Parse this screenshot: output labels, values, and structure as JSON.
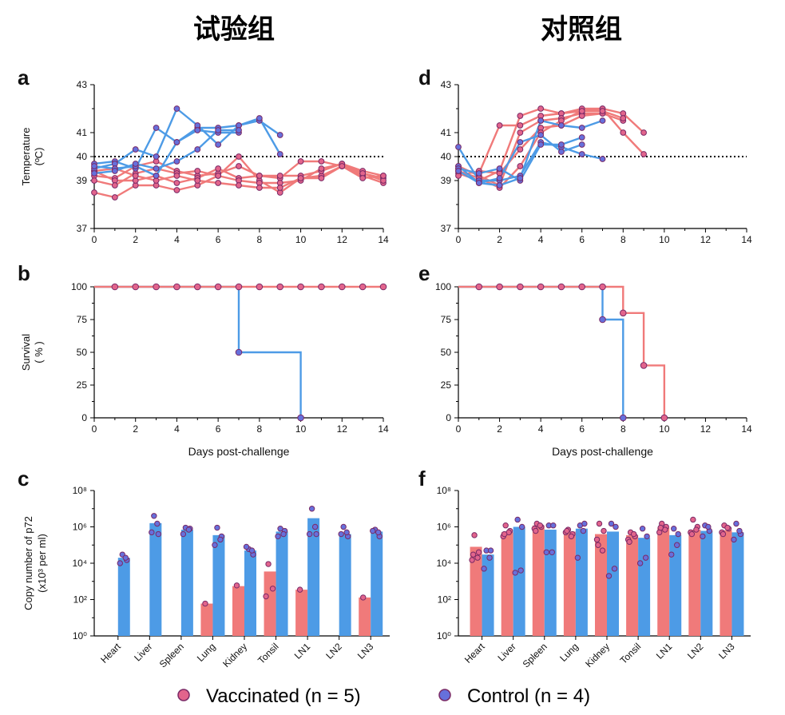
{
  "headers": {
    "left": "试验组",
    "right": "对照组"
  },
  "colors": {
    "vaccinated": "#f07a7a",
    "control": "#4d9be6",
    "marker_vacc": "#e2648c",
    "marker_ctrl": "#6670dc",
    "marker_edge": "#7a2a66"
  },
  "legend": {
    "vaccinated": "Vaccinated (n = 5)",
    "control": "Control (n = 4)"
  },
  "chart_data": [
    {
      "panel": "a",
      "type": "line",
      "ylabel": "Temperature (ºC)",
      "xlabel": "",
      "xlim": [
        0,
        14
      ],
      "ylim": [
        37,
        43
      ],
      "xticks": [
        0,
        2,
        4,
        6,
        8,
        10,
        12,
        14
      ],
      "yticks": [
        37,
        39,
        40,
        41,
        43
      ],
      "reference_line": 40,
      "series": [
        {
          "group": "vaccinated",
          "x": [
            0,
            1,
            2,
            3,
            4,
            5,
            6,
            7,
            8,
            9,
            10,
            11,
            12,
            13,
            14
          ],
          "y": [
            39.2,
            39.1,
            39.6,
            39.8,
            39.4,
            39.2,
            39.3,
            39.6,
            39.2,
            39.1,
            39.8,
            39.8,
            39.6,
            39.2,
            38.9
          ]
        },
        {
          "group": "vaccinated",
          "x": [
            0,
            1,
            2,
            3,
            4,
            5,
            6,
            7,
            8,
            9,
            10,
            11,
            12,
            13,
            14
          ],
          "y": [
            38.5,
            38.3,
            38.8,
            38.8,
            38.6,
            38.8,
            39.2,
            40.0,
            39.0,
            38.5,
            39.1,
            39.2,
            39.6,
            39.3,
            39.1
          ]
        },
        {
          "group": "vaccinated",
          "x": [
            0,
            1,
            2,
            3,
            4,
            5,
            6,
            7,
            8,
            9,
            10,
            11,
            12,
            13,
            14
          ],
          "y": [
            39.4,
            39.0,
            39.0,
            39.2,
            38.9,
            39.1,
            39.5,
            39.1,
            39.2,
            39.2,
            39.2,
            39.4,
            39.7,
            39.4,
            39.2
          ]
        },
        {
          "group": "vaccinated",
          "x": [
            0,
            1,
            2,
            3,
            4,
            5,
            6,
            7,
            8,
            9,
            10,
            11,
            12,
            13,
            14
          ],
          "y": [
            39.0,
            38.8,
            39.3,
            39.5,
            39.3,
            39.4,
            39.2,
            39.0,
            38.9,
            38.9,
            39.0,
            39.5,
            39.7,
            39.3,
            39.0
          ]
        },
        {
          "group": "vaccinated",
          "x": [
            0,
            1,
            2,
            3,
            4,
            5,
            6,
            7,
            8,
            9,
            10,
            11,
            12,
            13,
            14
          ],
          "y": [
            39.4,
            39.5,
            39.2,
            39.0,
            39.2,
            39.0,
            38.9,
            38.8,
            38.7,
            38.7,
            39.1,
            39.1,
            39.6,
            39.1,
            39.2
          ]
        },
        {
          "group": "control",
          "x": [
            0,
            1,
            2,
            3,
            4,
            5,
            6,
            7,
            8,
            9
          ],
          "y": [
            39.7,
            39.8,
            39.5,
            41.2,
            40.6,
            41.2,
            41.2,
            41.3,
            41.5,
            40.9
          ]
        },
        {
          "group": "control",
          "x": [
            0,
            1,
            2,
            3,
            4,
            5,
            6,
            7,
            8,
            9
          ],
          "y": [
            39.5,
            39.7,
            40.3,
            40.0,
            42.0,
            41.3,
            40.5,
            41.3,
            41.6,
            40.1
          ]
        },
        {
          "group": "control",
          "x": [
            0,
            1,
            2,
            3,
            4,
            5,
            6,
            7
          ],
          "y": [
            39.6,
            39.5,
            39.6,
            39.2,
            40.6,
            41.1,
            41.0,
            41.0
          ]
        },
        {
          "group": "control",
          "x": [
            0,
            1,
            2,
            3,
            4,
            5,
            6,
            7
          ],
          "y": [
            39.3,
            39.4,
            39.7,
            39.5,
            39.8,
            40.3,
            41.1,
            41.1
          ]
        }
      ]
    },
    {
      "panel": "b",
      "type": "line",
      "ylabel": "Survival (%)",
      "xlabel": "Days post-challenge",
      "xlim": [
        0,
        14
      ],
      "ylim": [
        0,
        100
      ],
      "xticks": [
        0,
        2,
        4,
        6,
        8,
        10,
        12,
        14
      ],
      "yticks": [
        0,
        25,
        50,
        75,
        100
      ],
      "steps": [
        {
          "group": "control",
          "points": [
            [
              0,
              100
            ],
            [
              7,
              100
            ],
            [
              7,
              50
            ],
            [
              10,
              50
            ],
            [
              10,
              0
            ]
          ]
        },
        {
          "group": "vaccinated",
          "points": [
            [
              0,
              100
            ],
            [
              14,
              100
            ]
          ]
        }
      ],
      "markers": [
        {
          "group": "vaccinated",
          "x": [
            1,
            2,
            3,
            4,
            5,
            6,
            7,
            8,
            9,
            10,
            11,
            12,
            13,
            14
          ],
          "y": [
            100,
            100,
            100,
            100,
            100,
            100,
            100,
            100,
            100,
            100,
            100,
            100,
            100,
            100
          ]
        },
        {
          "group": "control",
          "x": [
            7,
            10
          ],
          "y": [
            50,
            0
          ]
        }
      ]
    },
    {
      "panel": "c",
      "type": "bar",
      "ylabel": "Copy number of p72 (x10³ per ml)",
      "yscale": "log",
      "ylim": [
        1,
        100000000
      ],
      "yticks": [
        "10⁰",
        "10²",
        "10⁴",
        "10⁶",
        "10⁸"
      ],
      "categories": [
        "Heart",
        "Liver",
        "Spleen",
        "Lung",
        "Kidney",
        "Tonsil",
        "LN1",
        "LN2",
        "LN3"
      ],
      "series": [
        {
          "group": "vaccinated",
          "values": [
            null,
            null,
            null,
            60,
            550,
            3500,
            350,
            null,
            130
          ],
          "points": [
            [],
            [],
            [],
            [
              60
            ],
            [
              600
            ],
            [
              9000,
              400,
              150
            ],
            [
              350
            ],
            [],
            [
              130
            ]
          ]
        },
        {
          "group": "control",
          "values": [
            20000,
            1600000,
            700000,
            350000,
            50000,
            550000,
            3000000,
            400000,
            550000
          ],
          "points": [
            [
              30000,
              15000,
              10000,
              20000
            ],
            [
              4000000,
              400000,
              500000,
              1500000
            ],
            [
              900000,
              800000,
              400000,
              700000
            ],
            [
              900000,
              300000,
              100000,
              200000
            ],
            [
              60000,
              30000,
              80000,
              50000
            ],
            [
              800000,
              600000,
              300000,
              400000
            ],
            [
              10000000,
              400000,
              400000,
              1000000
            ],
            [
              1000000,
              300000,
              400000,
              500000
            ],
            [
              700000,
              300000,
              600000,
              500000
            ]
          ]
        }
      ]
    },
    {
      "panel": "d",
      "type": "line",
      "ylabel": "",
      "xlabel": "",
      "xlim": [
        0,
        14
      ],
      "ylim": [
        37,
        43
      ],
      "xticks": [
        0,
        2,
        4,
        6,
        8,
        10,
        12,
        14
      ],
      "yticks": [
        37,
        39,
        40,
        41,
        43
      ],
      "reference_line": 40,
      "series": [
        {
          "group": "vaccinated",
          "x": [
            0,
            1,
            2,
            3,
            4,
            5,
            6,
            7,
            8,
            9
          ],
          "y": [
            39.5,
            39.3,
            41.3,
            41.3,
            41.7,
            41.8,
            41.9,
            42.0,
            41.0,
            40.1
          ]
        },
        {
          "group": "vaccinated",
          "x": [
            0,
            1,
            2,
            3,
            4,
            5,
            6,
            7,
            8,
            9
          ],
          "y": [
            39.3,
            39.0,
            39.4,
            41.7,
            42.0,
            41.8,
            42.0,
            42.0,
            41.8,
            41.0
          ]
        },
        {
          "group": "vaccinated",
          "x": [
            0,
            1,
            2,
            3,
            4,
            5,
            6,
            7,
            8
          ],
          "y": [
            39.6,
            39.2,
            38.8,
            41.0,
            41.5,
            41.6,
            41.8,
            41.8,
            41.5
          ]
        },
        {
          "group": "vaccinated",
          "x": [
            0,
            1,
            2,
            3,
            4,
            5,
            6,
            7
          ],
          "y": [
            39.2,
            39.4,
            39.3,
            40.3,
            41.2,
            41.3,
            41.7,
            41.8
          ]
        },
        {
          "group": "vaccinated",
          "x": [
            0,
            1,
            2,
            3,
            4,
            5,
            6,
            7,
            8
          ],
          "y": [
            39.4,
            39.1,
            38.7,
            39.6,
            41.0,
            41.5,
            41.9,
            41.9,
            41.6
          ]
        },
        {
          "group": "control",
          "x": [
            0,
            1,
            2,
            3,
            4,
            5,
            6,
            7
          ],
          "y": [
            40.4,
            39.0,
            39.0,
            39.2,
            40.6,
            40.4,
            40.1,
            39.9
          ]
        },
        {
          "group": "control",
          "x": [
            0,
            1,
            2,
            3,
            4,
            5,
            6
          ],
          "y": [
            39.6,
            38.9,
            39.1,
            40.6,
            40.9,
            40.2,
            40.5
          ]
        },
        {
          "group": "control",
          "x": [
            0,
            1,
            2,
            3,
            4,
            5,
            6
          ],
          "y": [
            39.5,
            39.3,
            39.5,
            39.0,
            40.5,
            40.5,
            40.8
          ]
        },
        {
          "group": "control",
          "x": [
            0,
            1,
            2,
            3,
            4,
            5,
            6,
            7
          ],
          "y": [
            39.4,
            38.9,
            38.8,
            39.1,
            41.5,
            41.3,
            41.2,
            41.5
          ]
        }
      ]
    },
    {
      "panel": "e",
      "type": "line",
      "ylabel": "",
      "xlabel": "Days post-challenge",
      "xlim": [
        0,
        14
      ],
      "ylim": [
        0,
        100
      ],
      "xticks": [
        0,
        2,
        4,
        6,
        8,
        10,
        12,
        14
      ],
      "yticks": [
        0,
        25,
        50,
        75,
        100
      ],
      "steps": [
        {
          "group": "control",
          "points": [
            [
              0,
              100
            ],
            [
              7,
              100
            ],
            [
              7,
              75
            ],
            [
              8,
              75
            ],
            [
              8,
              0
            ]
          ]
        },
        {
          "group": "vaccinated",
          "points": [
            [
              0,
              100
            ],
            [
              7,
              100
            ],
            [
              8,
              100
            ],
            [
              8,
              80
            ],
            [
              9,
              80
            ],
            [
              9,
              40
            ],
            [
              10,
              40
            ],
            [
              10,
              0
            ]
          ]
        }
      ],
      "markers": [
        {
          "group": "vaccinated",
          "x": [
            1,
            2,
            3,
            4,
            5,
            6,
            7,
            8,
            9,
            10
          ],
          "y": [
            100,
            100,
            100,
            100,
            100,
            100,
            100,
            80,
            40,
            0
          ]
        },
        {
          "group": "control",
          "x": [
            7,
            8
          ],
          "y": [
            75,
            0
          ]
        }
      ]
    },
    {
      "panel": "f",
      "type": "bar",
      "ylabel": "",
      "yscale": "log",
      "ylim": [
        1,
        100000000
      ],
      "yticks": [
        "10⁰",
        "10²",
        "10⁴",
        "10⁶",
        "10⁸"
      ],
      "categories": [
        "Heart",
        "Liver",
        "Spleen",
        "Lung",
        "Kidney",
        "Tonsil",
        "LN1",
        "LN2",
        "LN3"
      ],
      "series": [
        {
          "group": "vaccinated",
          "values": [
            80000,
            500000,
            1200000,
            550000,
            400000,
            350000,
            900000,
            700000,
            650000
          ],
          "points": [
            [
              350000,
              40000,
              15000,
              20000,
              30000
            ],
            [
              1200000,
              600000,
              300000,
              500000,
              400000
            ],
            [
              1500000,
              1000000,
              800000,
              1200000,
              600000
            ],
            [
              700000,
              400000,
              500000,
              300000,
              600000
            ],
            [
              1500000,
              600000,
              200000,
              50000,
              100000
            ],
            [
              500000,
              300000,
              200000,
              400000,
              150000
            ],
            [
              1500000,
              1000000,
              500000,
              700000,
              900000
            ],
            [
              2500000,
              1000000,
              500000,
              700000,
              400000
            ],
            [
              1200000,
              800000,
              500000,
              900000,
              400000
            ]
          ]
        },
        {
          "group": "control",
          "values": [
            30000,
            1000000,
            700000,
            800000,
            550000,
            250000,
            350000,
            600000,
            500000
          ],
          "points": [
            [
              50000,
              50000,
              5000,
              20000
            ],
            [
              2500000,
              1000000,
              3000,
              4000
            ],
            [
              1200000,
              1200000,
              40000,
              40000
            ],
            [
              1200000,
              1500000,
              20000,
              600000
            ],
            [
              1500000,
              1000000,
              2000,
              5000
            ],
            [
              800000,
              300000,
              10000,
              20000
            ],
            [
              800000,
              400000,
              30000,
              100000
            ],
            [
              1200000,
              600000,
              300000,
              1000000
            ],
            [
              1500000,
              400000,
              200000,
              600000
            ]
          ]
        }
      ]
    }
  ]
}
